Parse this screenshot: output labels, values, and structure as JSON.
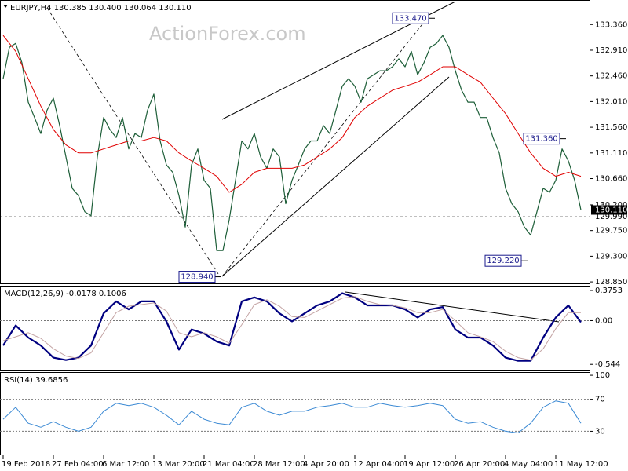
{
  "chart_data": [
    {
      "type": "line",
      "title": "EURJPY,H4  130.385 130.400 130.064 130.110",
      "watermark": "ActionForex.com",
      "ylim": [
        128.81,
        133.79
      ],
      "yticks": [
        {
          "value": 133.36,
          "label": "133.360"
        },
        {
          "value": 132.91,
          "label": "132.910"
        },
        {
          "value": 132.46,
          "label": "132.460"
        },
        {
          "value": 132.01,
          "label": "132.010"
        },
        {
          "value": 131.56,
          "label": "131.560"
        },
        {
          "value": 131.11,
          "label": "131.110"
        },
        {
          "value": 130.66,
          "label": "130.660"
        },
        {
          "value": 130.2,
          "label": "130.200"
        },
        {
          "value": 129.75,
          "label": "129.750"
        },
        {
          "value": 129.3,
          "label": "129.300"
        },
        {
          "value": 128.85,
          "label": "128.850"
        }
      ],
      "series": [
        {
          "color": "#1d5e38",
          "width": 1.2,
          "values": [
            132.41,
            132.96,
            133.03,
            132.69,
            132.0,
            131.73,
            131.45,
            131.86,
            132.07,
            131.59,
            131.04,
            130.49,
            130.36,
            130.08,
            130.01,
            131.04,
            131.73,
            131.52,
            131.38,
            131.73,
            131.18,
            131.45,
            131.38,
            131.86,
            132.14,
            131.32,
            130.9,
            130.77,
            130.36,
            129.81,
            130.9,
            131.18,
            130.63,
            130.49,
            129.4,
            129.4,
            129.94,
            130.63,
            131.32,
            131.18,
            131.45,
            131.04,
            130.84,
            131.18,
            131.04,
            130.22,
            130.63,
            130.9,
            131.18,
            131.32,
            131.32,
            131.59,
            131.45,
            131.86,
            132.28,
            132.41,
            132.28,
            132.0,
            132.41,
            132.48,
            132.55,
            132.55,
            132.62,
            132.76,
            132.62,
            132.89,
            132.48,
            132.69,
            132.96,
            133.03,
            133.17,
            132.96,
            132.55,
            132.21,
            132.0,
            132.0,
            131.73,
            131.73,
            131.38,
            131.11,
            130.49,
            130.22,
            130.08,
            129.81,
            129.67,
            130.08,
            130.49,
            130.42,
            130.63,
            131.18,
            130.97,
            130.63,
            130.11
          ]
        },
        {
          "color": "#e00000",
          "width": 1,
          "values": [
            133.17,
            132.89,
            132.41,
            131.93,
            131.52,
            131.25,
            131.11,
            131.11,
            131.18,
            131.25,
            131.32,
            131.32,
            131.38,
            131.32,
            131.11,
            130.97,
            130.84,
            130.7,
            130.42,
            130.56,
            130.77,
            130.84,
            130.84,
            130.84,
            130.9,
            131.04,
            131.18,
            131.38,
            131.73,
            131.93,
            132.07,
            132.21,
            132.28,
            132.35,
            132.48,
            132.62,
            132.62,
            132.48,
            132.35,
            132.07,
            131.8,
            131.45,
            131.11,
            130.84,
            130.7,
            130.77,
            130.7
          ]
        }
      ],
      "annotations": [
        {
          "value": 133.47,
          "label": "133.470"
        },
        {
          "value": 128.94,
          "label": "128.940"
        },
        {
          "value": 131.36,
          "label": "131.360"
        },
        {
          "value": 129.22,
          "label": "129.220"
        }
      ],
      "levels": [
        {
          "value": 129.99,
          "label": "129.990",
          "style": "dashed"
        },
        {
          "value": 130.11,
          "label": "130.110",
          "style": "current"
        }
      ],
      "x_labels": [
        "19 Feb 2018",
        "27 Feb 04:00",
        "6 Mar 12:00",
        "13 Mar 20:00",
        "21 Mar 04:00",
        "28 Mar 12:00",
        "4 Apr 20:00",
        "12 Apr 04:00",
        "19 Apr 12:00",
        "26 Apr 20:00",
        "4 May 04:00",
        "11 May 12:00"
      ]
    },
    {
      "type": "line",
      "title": "MACD(12,26,9) -0.0178 0.1006",
      "ylim": [
        -0.62,
        0.434
      ],
      "yticks": [
        0.3753,
        {
          "value": 0,
          "label": "0.00"
        },
        -0.544
      ],
      "reference_lines": [
        0
      ],
      "series": [
        {
          "color": "#000080",
          "width": 2.2,
          "values": [
            -0.31,
            -0.06,
            -0.21,
            -0.31,
            -0.46,
            -0.49,
            -0.46,
            -0.31,
            0.09,
            0.24,
            0.14,
            0.24,
            0.24,
            -0.01,
            -0.36,
            -0.11,
            -0.16,
            -0.26,
            -0.31,
            0.24,
            0.29,
            0.24,
            0.09,
            -0.01,
            0.09,
            0.19,
            0.24,
            0.34,
            0.29,
            0.19,
            0.19,
            0.19,
            0.14,
            0.04,
            0.14,
            0.17,
            -0.11,
            -0.21,
            -0.21,
            -0.31,
            -0.46,
            -0.5,
            -0.5,
            -0.21,
            0.04,
            0.19,
            -0.02
          ]
        },
        {
          "color": "#c4a4a4",
          "width": 1,
          "values": [
            -0.25,
            -0.2,
            -0.15,
            -0.22,
            -0.35,
            -0.44,
            -0.47,
            -0.4,
            -0.15,
            0.1,
            0.18,
            0.2,
            0.22,
            0.12,
            -0.15,
            -0.2,
            -0.15,
            -0.2,
            -0.28,
            -0.05,
            0.2,
            0.26,
            0.18,
            0.05,
            0.04,
            0.12,
            0.2,
            0.28,
            0.3,
            0.24,
            0.2,
            0.19,
            0.16,
            0.1,
            0.1,
            0.14,
            0.0,
            -0.15,
            -0.2,
            -0.26,
            -0.38,
            -0.46,
            -0.49,
            -0.35,
            -0.1,
            0.1,
            0.1
          ]
        }
      ]
    },
    {
      "type": "line",
      "title": "RSI(14) 39.6856",
      "ylim": [
        0,
        104
      ],
      "yticks": [
        100,
        70,
        30
      ],
      "reference_lines": [
        70,
        30
      ],
      "series": [
        {
          "color": "#3c8ad4",
          "width": 1,
          "values": [
            45,
            60,
            40,
            35,
            42,
            35,
            30,
            35,
            55,
            65,
            62,
            65,
            60,
            50,
            38,
            55,
            45,
            40,
            38,
            60,
            65,
            55,
            50,
            55,
            55,
            60,
            62,
            65,
            60,
            60,
            65,
            62,
            60,
            62,
            65,
            62,
            45,
            40,
            42,
            35,
            30,
            28,
            40,
            60,
            68,
            65,
            40
          ]
        }
      ]
    }
  ]
}
